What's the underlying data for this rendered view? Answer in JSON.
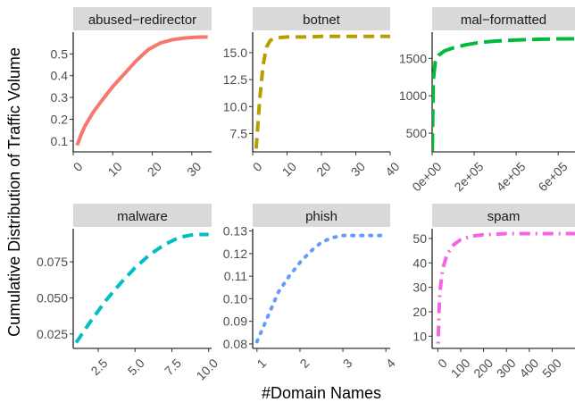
{
  "figure": {
    "ylabel": "Cumulative Distribution of Traffic Volume",
    "xlabel": "#Domain Names"
  },
  "chart_data": [
    {
      "type": "line",
      "title": "abused−redirector",
      "color": "#F8766D",
      "line_style": "solid",
      "xlim": [
        0,
        35
      ],
      "ylim": [
        0.05,
        0.6
      ],
      "xticks": [
        0,
        10,
        20,
        30
      ],
      "xtick_labels": [
        "0",
        "10",
        "20",
        "30"
      ],
      "yticks": [
        0.1,
        0.2,
        0.3,
        0.4,
        0.5
      ],
      "ytick_labels": [
        "0.1",
        "0.2",
        "0.3",
        "0.4",
        "0.5"
      ],
      "x": [
        1,
        2,
        3,
        5,
        7,
        10,
        13,
        16,
        19,
        22,
        25,
        28,
        31,
        34
      ],
      "y": [
        0.08,
        0.13,
        0.17,
        0.23,
        0.28,
        0.35,
        0.41,
        0.47,
        0.52,
        0.55,
        0.565,
        0.573,
        0.577,
        0.578
      ]
    },
    {
      "type": "line",
      "title": "botnet",
      "color": "#B79F00",
      "line_style": "dashed",
      "xlim": [
        0,
        40
      ],
      "ylim": [
        5.8,
        16.9
      ],
      "xticks": [
        0,
        10,
        20,
        30,
        40
      ],
      "xtick_labels": [
        "0",
        "10",
        "20",
        "30",
        "40"
      ],
      "yticks": [
        7.5,
        10,
        12.5,
        15
      ],
      "ytick_labels": [
        "7.5",
        "10.0",
        "12.5",
        "15.0"
      ],
      "x": [
        1,
        2,
        3,
        4,
        5,
        6,
        8,
        10,
        15,
        20,
        30,
        40
      ],
      "y": [
        6.1,
        10.5,
        13.8,
        15.5,
        16.1,
        16.3,
        16.4,
        16.45,
        16.45,
        16.5,
        16.5,
        16.5
      ]
    },
    {
      "type": "line",
      "title": "mal−formatted",
      "color": "#00BA38",
      "line_style": "longdash",
      "xlim": [
        0,
        680000
      ],
      "ylim": [
        250,
        1850
      ],
      "xticks": [
        0,
        200000,
        400000,
        600000
      ],
      "xtick_labels": [
        "0e+00",
        "2e+05",
        "4e+05",
        "6e+05"
      ],
      "yticks": [
        500,
        1000,
        1500
      ],
      "ytick_labels": [
        "500",
        "1000",
        "1500"
      ],
      "x": [
        1000,
        5000,
        15000,
        30000,
        60000,
        100000,
        160000,
        220000,
        300000,
        400000,
        500000,
        600000,
        680000
      ],
      "y": [
        260,
        1200,
        1450,
        1540,
        1600,
        1640,
        1680,
        1710,
        1730,
        1745,
        1755,
        1760,
        1762
      ]
    },
    {
      "type": "line",
      "title": "malware",
      "color": "#00BFC4",
      "line_style": "dashed",
      "xlim": [
        0.8,
        10.2
      ],
      "ylim": [
        0.015,
        0.098
      ],
      "xticks": [
        2.5,
        5,
        7.5,
        10
      ],
      "xtick_labels": [
        "2.5",
        "5.0",
        "7.5",
        "10.0"
      ],
      "yticks": [
        0.025,
        0.05,
        0.075
      ],
      "ytick_labels": [
        "0.025",
        "0.050",
        "0.075"
      ],
      "x": [
        1,
        2,
        3,
        4,
        5,
        6,
        7,
        8,
        9,
        10
      ],
      "y": [
        0.019,
        0.034,
        0.048,
        0.06,
        0.071,
        0.08,
        0.087,
        0.092,
        0.094,
        0.094
      ]
    },
    {
      "type": "line",
      "title": "phish",
      "color": "#619CFF",
      "line_style": "dotted",
      "xlim": [
        0.9,
        4.1
      ],
      "ylim": [
        0.078,
        0.131
      ],
      "xticks": [
        1,
        2,
        3,
        4
      ],
      "xtick_labels": [
        "1",
        "2",
        "3",
        "4"
      ],
      "yticks": [
        0.08,
        0.09,
        0.1,
        0.11,
        0.12,
        0.13
      ],
      "ytick_labels": [
        "0.08",
        "0.09",
        "0.10",
        "0.11",
        "0.12",
        "0.13"
      ],
      "x": [
        1,
        1.25,
        1.5,
        1.75,
        2,
        2.25,
        2.5,
        2.75,
        3,
        3.5,
        4
      ],
      "y": [
        0.081,
        0.092,
        0.103,
        0.11,
        0.116,
        0.121,
        0.125,
        0.127,
        0.128,
        0.128,
        0.128
      ]
    },
    {
      "type": "line",
      "title": "spam",
      "color": "#F564E3",
      "line_style": "dotdash",
      "xlim": [
        -25,
        600
      ],
      "ylim": [
        5,
        54
      ],
      "xticks": [
        0,
        100,
        200,
        300,
        400,
        500
      ],
      "xtick_labels": [
        "0",
        "100",
        "200",
        "300",
        "400",
        "500"
      ],
      "yticks": [
        10,
        20,
        30,
        40,
        50
      ],
      "ytick_labels": [
        "10",
        "20",
        "30",
        "40",
        "50"
      ],
      "x": [
        1,
        5,
        10,
        20,
        40,
        70,
        100,
        150,
        200,
        300,
        400,
        500,
        600
      ],
      "y": [
        7,
        20,
        29,
        37,
        43.5,
        47.5,
        49.5,
        51,
        51.5,
        52,
        52,
        52,
        52
      ]
    }
  ]
}
